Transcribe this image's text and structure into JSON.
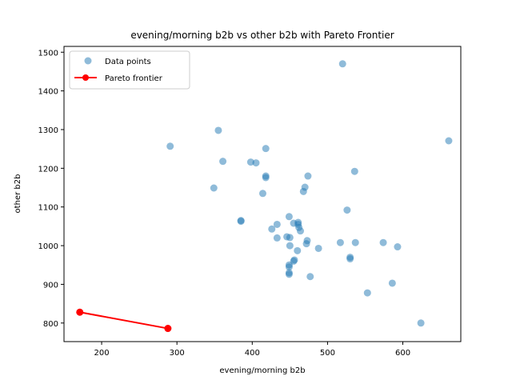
{
  "chart_data": {
    "type": "scatter",
    "title": "evening/morning b2b vs other b2b with Pareto Frontier",
    "xlabel": "evening/morning b2b",
    "ylabel": "other b2b",
    "xlim": [
      150,
      677
    ],
    "ylim": [
      752,
      1515
    ],
    "xticks": [
      200,
      300,
      400,
      500,
      600
    ],
    "yticks": [
      800,
      900,
      1000,
      1100,
      1200,
      1300,
      1400,
      1500
    ],
    "grid": false,
    "legend_position": "top-left",
    "series": [
      {
        "name": "Data points",
        "kind": "scatter",
        "color": "#1f77b4",
        "points": [
          [
            291,
            1257
          ],
          [
            355,
            1298
          ],
          [
            361,
            1218
          ],
          [
            349,
            1149
          ],
          [
            398,
            1216
          ],
          [
            405,
            1214
          ],
          [
            418,
            1251
          ],
          [
            418,
            1180
          ],
          [
            418,
            1176
          ],
          [
            414,
            1135
          ],
          [
            385,
            1065
          ],
          [
            385,
            1063
          ],
          [
            426,
            1043
          ],
          [
            433,
            1055
          ],
          [
            433,
            1020
          ],
          [
            446,
            1023
          ],
          [
            449,
            1075
          ],
          [
            450,
            1021
          ],
          [
            450,
            1000
          ],
          [
            455,
            1058
          ],
          [
            461,
            1060
          ],
          [
            461,
            1055
          ],
          [
            462,
            1047
          ],
          [
            464,
            1038
          ],
          [
            456,
            963
          ],
          [
            455,
            960
          ],
          [
            449,
            950
          ],
          [
            449,
            945
          ],
          [
            449,
            930
          ],
          [
            449,
            926
          ],
          [
            460,
            987
          ],
          [
            468,
            1140
          ],
          [
            470,
            1151
          ],
          [
            474,
            1180
          ],
          [
            473,
            1013
          ],
          [
            472,
            1005
          ],
          [
            477,
            920
          ],
          [
            488,
            993
          ],
          [
            517,
            1008
          ],
          [
            520,
            1470
          ],
          [
            526,
            1092
          ],
          [
            530,
            970
          ],
          [
            530,
            966
          ],
          [
            536,
            1192
          ],
          [
            537,
            1008
          ],
          [
            553,
            878
          ],
          [
            574,
            1008
          ],
          [
            586,
            903
          ],
          [
            593,
            997
          ],
          [
            624,
            800
          ],
          [
            661,
            1271
          ]
        ]
      },
      {
        "name": "Pareto frontier",
        "kind": "line",
        "color": "#ff0000",
        "points": [
          [
            171,
            828
          ],
          [
            288,
            786
          ]
        ]
      }
    ]
  }
}
